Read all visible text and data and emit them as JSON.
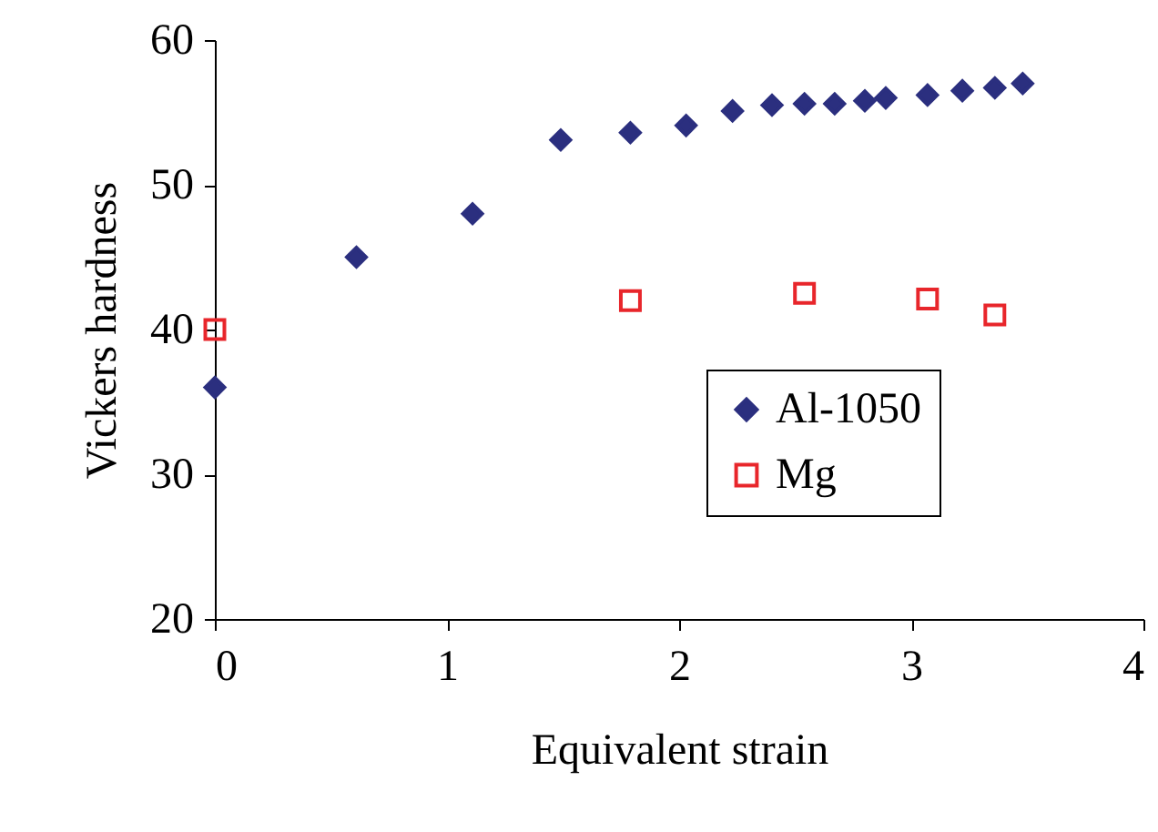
{
  "chart_data": {
    "type": "scatter",
    "xlabel": "Equivalent strain",
    "ylabel": "Vickers hardness",
    "xlim": [
      0,
      4
    ],
    "xticks": [
      0,
      1,
      2,
      3,
      4
    ],
    "ylim": [
      20,
      60
    ],
    "yticks": [
      20,
      30,
      40,
      50,
      60
    ],
    "grid": false,
    "legend": "bottom right",
    "series": [
      {
        "name": "Al-1050",
        "color": "#2b2f7f",
        "marker": "diamond",
        "x": [
          0,
          0.61,
          1.11,
          1.49,
          1.79,
          2.03,
          2.23,
          2.4,
          2.54,
          2.67,
          2.8,
          2.89,
          3.07,
          3.22,
          3.36,
          3.48
        ],
        "values": [
          36,
          45,
          48,
          53.1,
          53.6,
          54.1,
          55.1,
          55.5,
          55.6,
          55.6,
          55.8,
          56,
          56.2,
          56.5,
          56.7,
          57
        ]
      },
      {
        "name": "Mg",
        "color": "#e8262b",
        "marker": "square",
        "x": [
          0,
          1.79,
          2.54,
          3.07,
          3.36
        ],
        "values": [
          40,
          42,
          42.5,
          42.1,
          41
        ]
      }
    ]
  }
}
